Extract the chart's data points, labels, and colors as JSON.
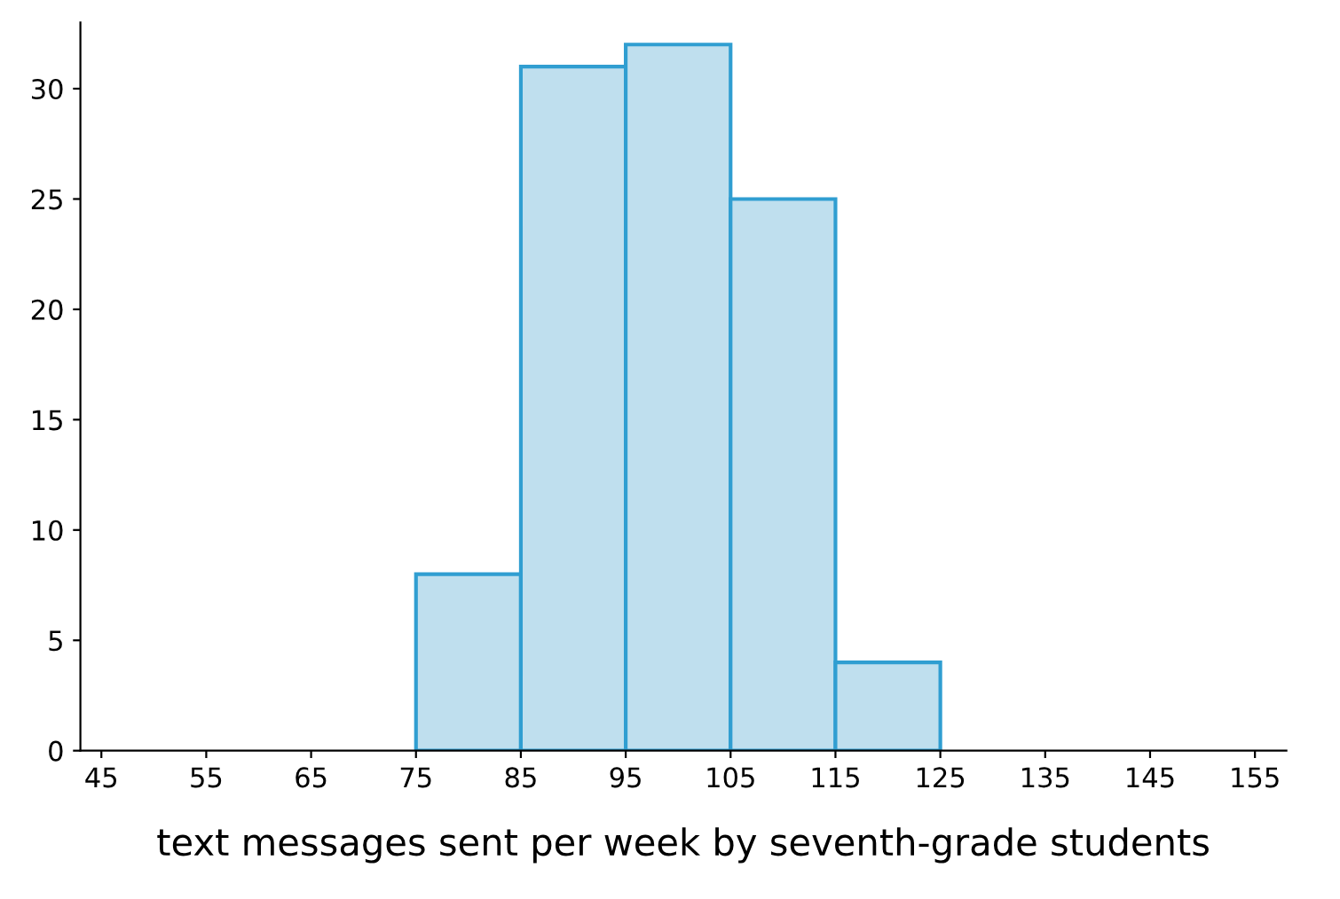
{
  "chart_data": {
    "type": "histogram",
    "xlabel": "text messages sent per week by seventh-grade students",
    "bins": [
      75,
      85,
      95,
      105,
      115,
      125
    ],
    "values": [
      8,
      31,
      32,
      25,
      4
    ],
    "color": "#bfdfee",
    "xlim": [
      43,
      158
    ],
    "xticks": [
      45,
      55,
      65,
      75,
      85,
      95,
      105,
      115,
      125,
      135,
      145,
      155
    ],
    "ylim": [
      0,
      33
    ],
    "yticks": [
      0,
      5,
      10,
      15,
      20,
      25,
      30
    ],
    "grid": false
  }
}
